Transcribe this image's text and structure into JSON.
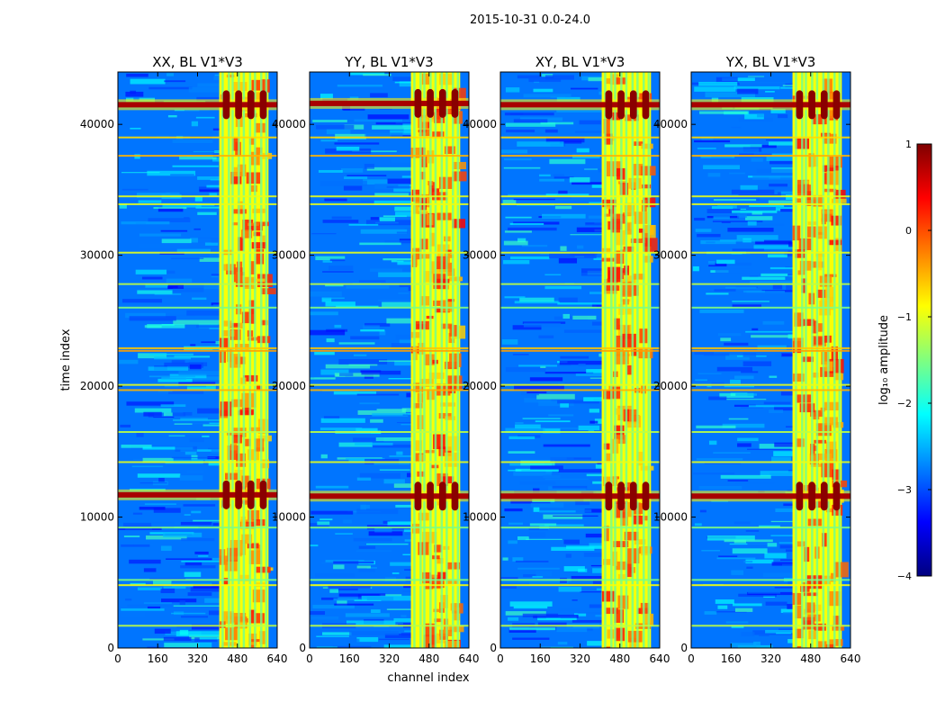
{
  "figure": {
    "suptitle": "2015-10-31 0.0-24.0"
  },
  "chart_data": {
    "type": "heatmap",
    "title": "2015-10-31 0.0-24.0",
    "xlabel": "channel index",
    "ylabel": "time index",
    "xlim": [
      0,
      640
    ],
    "ylim": [
      0,
      44000
    ],
    "xticks": [
      0,
      160,
      320,
      480,
      640
    ],
    "yticks": [
      0,
      10000,
      20000,
      30000,
      40000
    ],
    "panels": [
      {
        "title": "XX, BL V1*V3",
        "pol": "XX",
        "bright_band": [
          407,
          605
        ],
        "peak_rows": [
          11700,
          41500
        ],
        "vbars": [
          420,
          445,
          460,
          485,
          505,
          530,
          550,
          575,
          595
        ]
      },
      {
        "title": "YY, BL V1*V3",
        "pol": "YY",
        "bright_band": [
          407,
          605
        ],
        "peak_rows": [
          11600,
          41600
        ],
        "vbars": [
          420,
          445,
          460,
          485,
          505,
          530,
          550,
          575,
          595
        ]
      },
      {
        "title": "XY, BL V1*V3",
        "pol": "XY",
        "bright_band": [
          407,
          605
        ],
        "peak_rows": [
          11600,
          41500
        ],
        "vbars": [
          420,
          445,
          460,
          485,
          505,
          530,
          550,
          575,
          595
        ]
      },
      {
        "title": "YX, BL V1*V3",
        "pol": "YX",
        "bright_band": [
          407,
          605
        ],
        "peak_rows": [
          11600,
          41500
        ],
        "vbars": [
          420,
          445,
          460,
          485,
          505,
          530,
          550,
          575,
          595
        ]
      }
    ],
    "horizontal_features": [
      {
        "y": 1700,
        "level": -1.2
      },
      {
        "y": 4800,
        "level": -0.9
      },
      {
        "y": 5200,
        "level": -1.5
      },
      {
        "y": 9200,
        "level": -1.5
      },
      {
        "y": 11600,
        "level": 0.9
      },
      {
        "y": 14200,
        "level": -1.0
      },
      {
        "y": 16500,
        "level": -1.2
      },
      {
        "y": 19700,
        "level": -0.5
      },
      {
        "y": 20100,
        "level": -1.0
      },
      {
        "y": 22700,
        "level": -0.4
      },
      {
        "y": 22900,
        "level": -0.6
      },
      {
        "y": 26000,
        "level": -1.5
      },
      {
        "y": 27800,
        "level": -1.2
      },
      {
        "y": 30200,
        "level": -1.0
      },
      {
        "y": 33900,
        "level": -1.0
      },
      {
        "y": 34500,
        "level": -1.0
      },
      {
        "y": 37600,
        "level": -0.5
      },
      {
        "y": 39000,
        "level": -0.7
      },
      {
        "y": 41500,
        "level": 1.0
      }
    ],
    "colorbar": {
      "label": "log₁₀ amplitude",
      "range": [
        -4,
        1
      ],
      "ticks": [
        "1",
        "0",
        "−1",
        "−2",
        "−3",
        "−4"
      ],
      "colormap": "jet"
    }
  }
}
